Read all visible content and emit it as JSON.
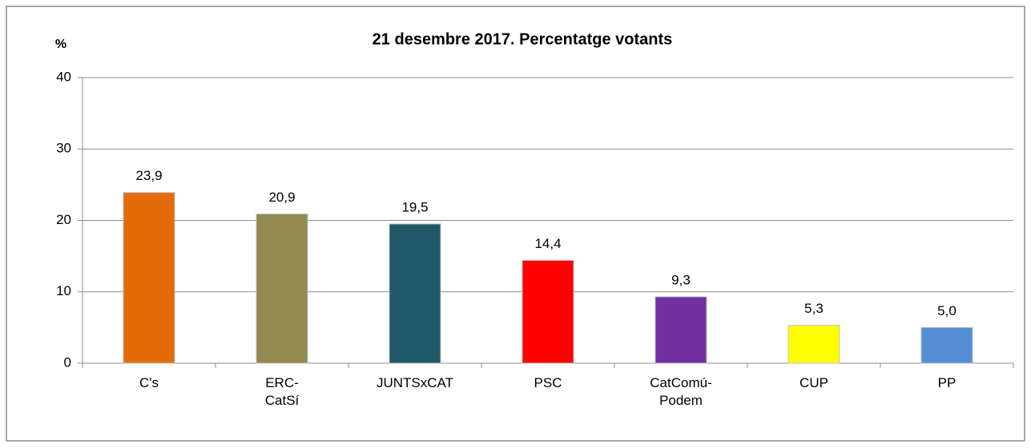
{
  "chart_data": {
    "type": "bar",
    "title": "21 desembre 2017. Percentatge votants",
    "y_label": "%",
    "categories": [
      "C's",
      "ERC-\nCatSí",
      "JUNTSxCAT",
      "PSC",
      "CatComú-\nPodem",
      "CUP",
      "PP"
    ],
    "values": [
      23.9,
      20.9,
      19.5,
      14.4,
      9.3,
      5.3,
      5.0
    ],
    "value_labels": [
      "23,9",
      "20,9",
      "19,5",
      "14,4",
      "9,3",
      "5,3",
      "5,0"
    ],
    "colors": [
      "#e36c09",
      "#938953",
      "#215968",
      "#ff0000",
      "#7030a0",
      "#ffff00",
      "#558ed5"
    ],
    "ylim": [
      0,
      40
    ],
    "yticks": [
      0,
      10,
      20,
      30,
      40
    ],
    "grid": true
  }
}
